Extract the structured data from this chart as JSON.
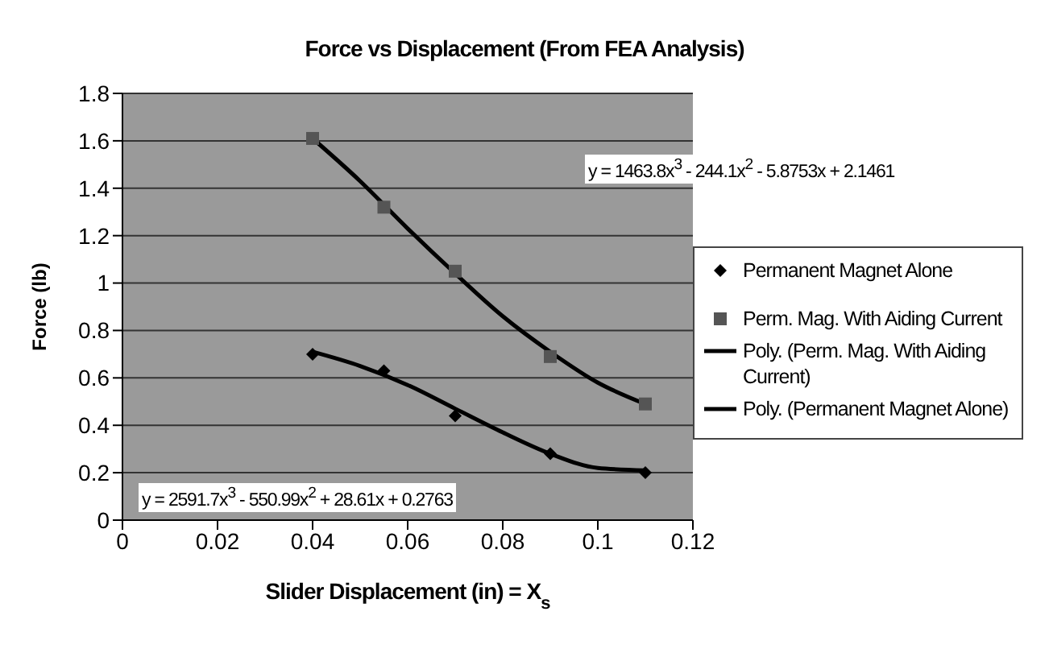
{
  "chart_data": {
    "type": "scatter",
    "title": "Force vs Displacement (From FEA Analysis)",
    "xlabel": "Slider Displacement (in) = X$_{s}$",
    "ylabel": "Force (lb)",
    "xlim": [
      0,
      0.12
    ],
    "xticks": [
      0,
      0.02,
      0.04,
      0.06,
      0.08,
      0.1,
      0.12
    ],
    "ylim": [
      0,
      1.8
    ],
    "yticks": [
      0,
      0.2,
      0.4,
      0.6,
      0.8,
      1,
      1.2,
      1.4,
      1.6,
      1.8
    ],
    "grid": "y",
    "legend": "right",
    "series": [
      {
        "name": "Permanent Magnet Alone",
        "marker": "diamond",
        "color": "#000000",
        "x": [
          0.04,
          0.055,
          0.07,
          0.09,
          0.11
        ],
        "values": [
          0.7,
          0.63,
          0.44,
          0.28,
          0.2
        ]
      },
      {
        "name": "Perm. Mag. With Aiding Current",
        "marker": "square",
        "color": "#555555",
        "x": [
          0.04,
          0.055,
          0.07,
          0.09,
          0.11
        ],
        "values": [
          1.61,
          1.32,
          1.05,
          0.69,
          0.49
        ]
      },
      {
        "name": "Poly. (Perm. Mag. With Aiding Current)",
        "type": "line",
        "marker": "none",
        "line_style": "solid",
        "color": "#000000",
        "x": [
          0.04,
          0.05,
          0.06,
          0.07,
          0.08,
          0.09,
          0.1,
          0.11
        ],
        "values": [
          1.61,
          1.43,
          1.23,
          1.04,
          0.86,
          0.71,
          0.58,
          0.49
        ]
      },
      {
        "name": "Poly. (Permanent Magnet Alone)",
        "type": "line",
        "marker": "none",
        "line_style": "solid",
        "color": "#000000",
        "x": [
          0.04,
          0.05,
          0.06,
          0.07,
          0.08,
          0.09,
          0.1,
          0.11
        ],
        "values": [
          0.71,
          0.65,
          0.57,
          0.47,
          0.37,
          0.28,
          0.22,
          0.21
        ]
      }
    ],
    "annotations": [
      "y = 1463.8x$^{3}$ - 244.1x$^{2}$ - 5.8753x + 2.1461",
      "y = 2591.7x$^{3}$ - 550.99x$^{2}$ + 28.61x + 0.2763"
    ]
  }
}
